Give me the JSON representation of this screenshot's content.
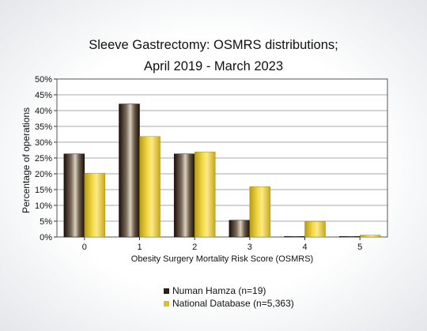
{
  "chart_data": {
    "type": "bar",
    "title_line1": "Sleeve Gastrectomy: OSMRS distributions;",
    "title_line2": "April 2019 - March 2023",
    "xlabel": "Obesity Surgery Mortality Risk Score (OSMRS)",
    "ylabel": "Percentage of operations",
    "categories": [
      "0",
      "1",
      "2",
      "3",
      "4",
      "5"
    ],
    "ylim": [
      0,
      50
    ],
    "yticks": [
      "0%",
      "5%",
      "10%",
      "15%",
      "20%",
      "25%",
      "30%",
      "35%",
      "40%",
      "45%",
      "50%"
    ],
    "grid": true,
    "legend_position": "bottom",
    "series": [
      {
        "name": "Numan Hamza (n=19)",
        "values": [
          26.3,
          42.1,
          26.3,
          5.3,
          0,
          0
        ],
        "color": "#2e1f14"
      },
      {
        "name": "National Database (n=5,363)",
        "values": [
          20.2,
          31.8,
          26.9,
          15.9,
          4.9,
          0.6
        ],
        "color": "#d9b820"
      }
    ]
  }
}
